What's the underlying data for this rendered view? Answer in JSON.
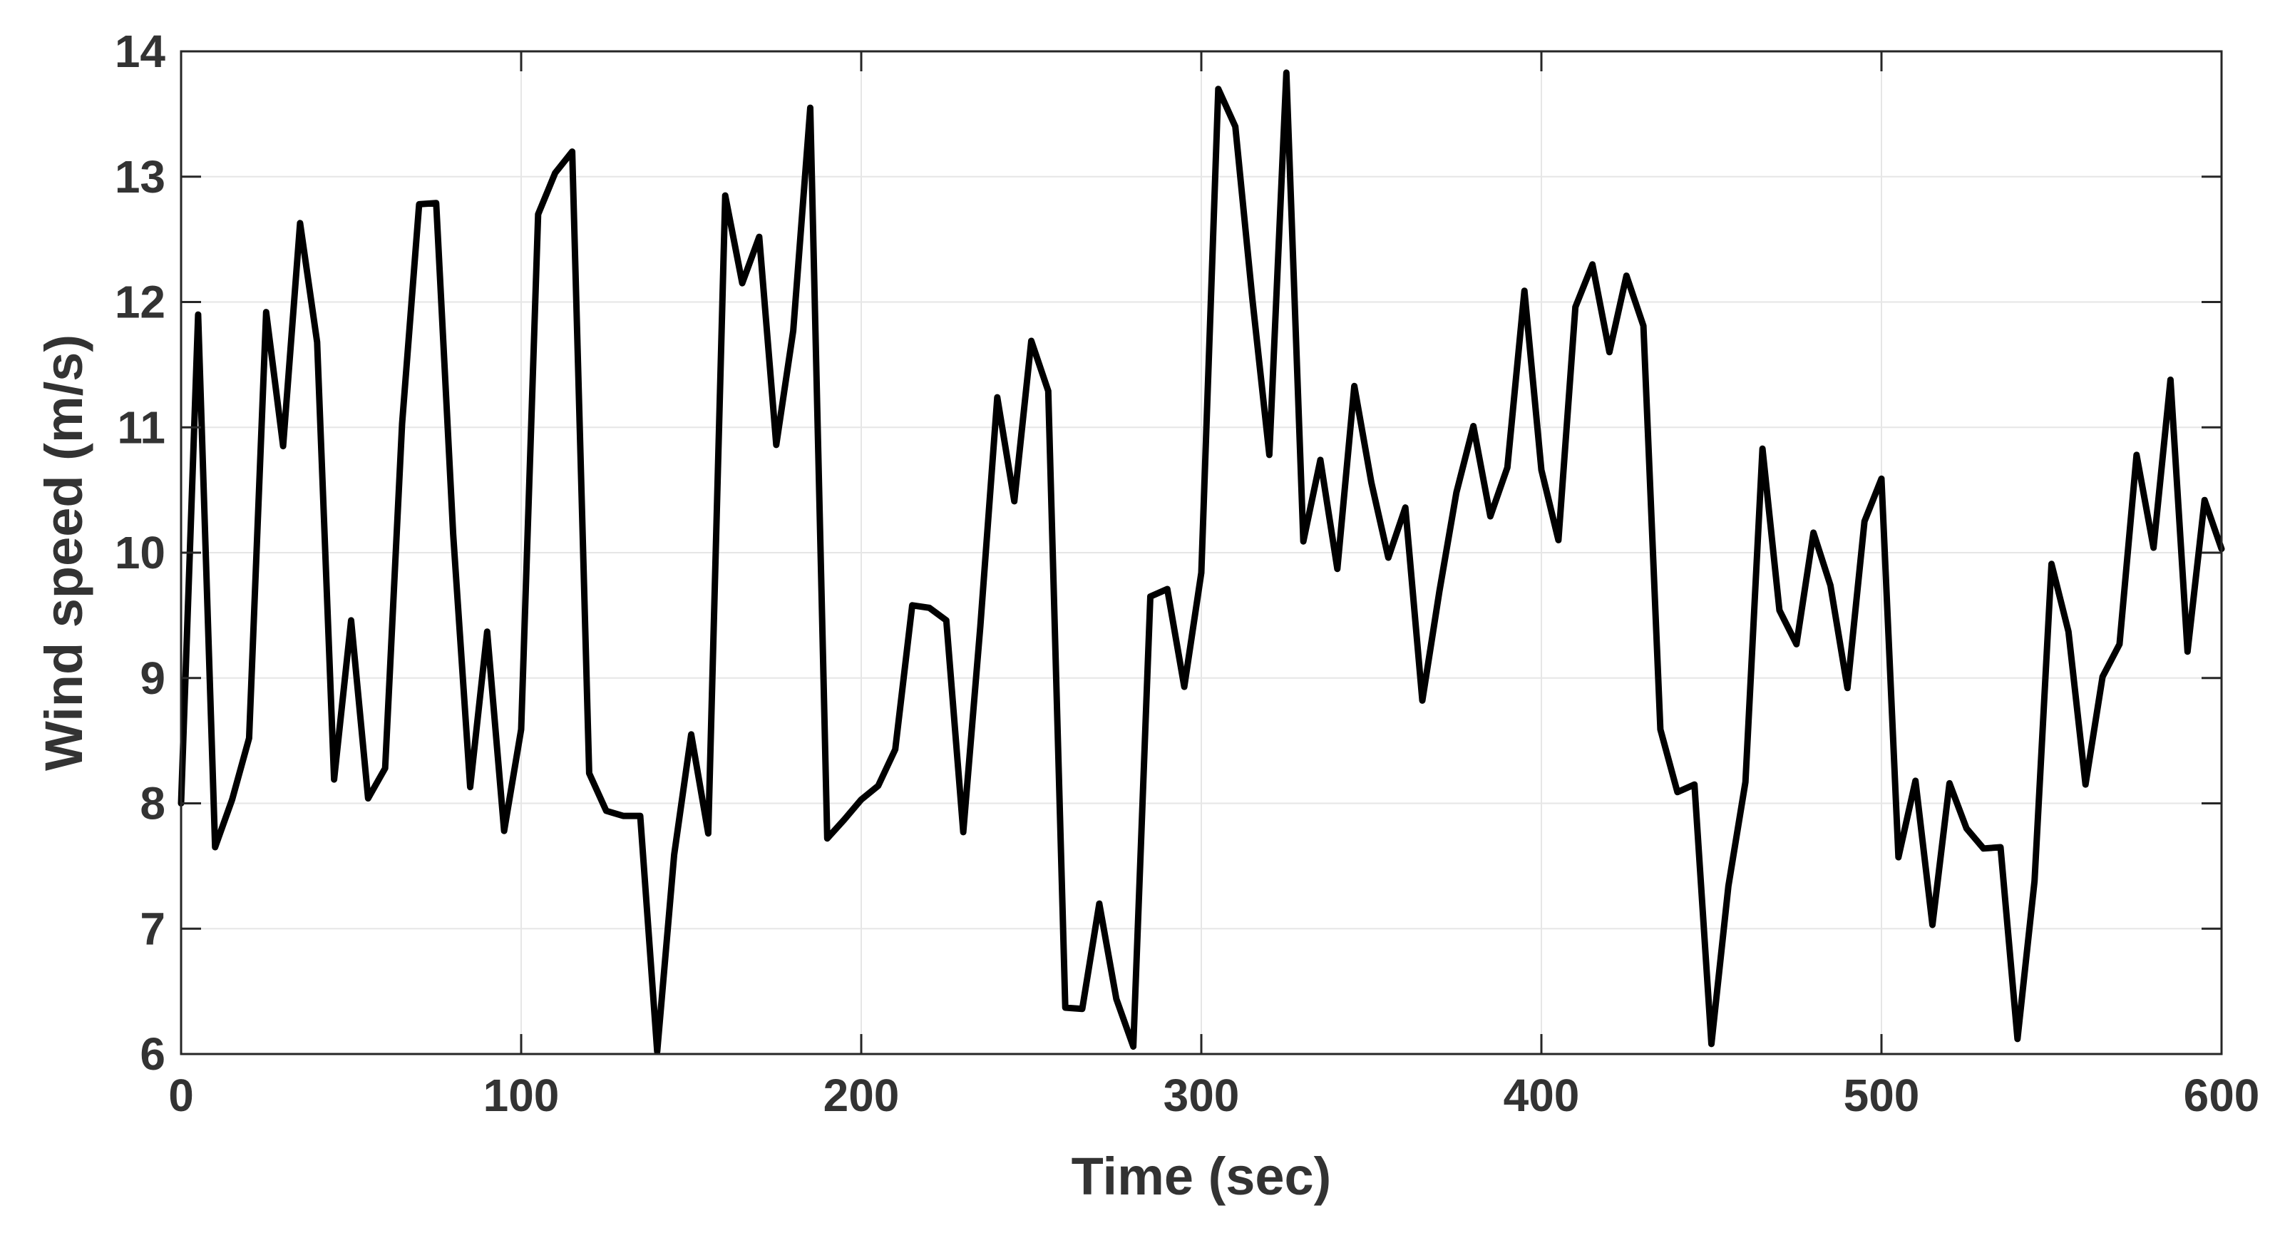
{
  "chart_data": {
    "type": "line",
    "xlabel": "Time (sec)",
    "ylabel": "Wind speed (m/s)",
    "xlim": [
      0,
      600
    ],
    "ylim": [
      6,
      14
    ],
    "xticks": [
      0,
      100,
      200,
      300,
      400,
      500,
      600
    ],
    "yticks": [
      6,
      7,
      8,
      9,
      10,
      11,
      12,
      13,
      14
    ],
    "grid": true,
    "colors": {
      "line": "#000000",
      "grid": "#e6e6e6",
      "axes": "#262626",
      "text": "#333333"
    },
    "series": [
      {
        "x": [
          0,
          5,
          10,
          15,
          20,
          25,
          30,
          35,
          40,
          45,
          50,
          55,
          60,
          65,
          70,
          75,
          80,
          85,
          90,
          95,
          100,
          105,
          110,
          115,
          120,
          125,
          130,
          135,
          140,
          145,
          150,
          155,
          160,
          165,
          170,
          175,
          180,
          185,
          190,
          195,
          200,
          205,
          210,
          215,
          220,
          225,
          230,
          235,
          240,
          245,
          250,
          255,
          260,
          265,
          270,
          275,
          280,
          285,
          290,
          295,
          300,
          305,
          310,
          315,
          320,
          325,
          330,
          335,
          340,
          345,
          350,
          355,
          360,
          365,
          370,
          375,
          380,
          385,
          390,
          395,
          400,
          405,
          410,
          415,
          420,
          425,
          430,
          435,
          440,
          445,
          450,
          455,
          460,
          465,
          470,
          475,
          480,
          485,
          490,
          495,
          500,
          505,
          510,
          515,
          520,
          525,
          530,
          535,
          540,
          545,
          550,
          555,
          560,
          565,
          570,
          575,
          580,
          585,
          590,
          595,
          600
        ],
        "y": [
          8.0,
          11.9,
          7.65,
          8.03,
          8.52,
          11.92,
          10.85,
          12.63,
          11.68,
          8.19,
          9.46,
          8.04,
          8.28,
          11.03,
          12.78,
          12.79,
          10.15,
          8.13,
          9.37,
          7.78,
          8.59,
          12.7,
          13.03,
          13.2,
          8.24,
          7.94,
          7.9,
          7.9,
          6.02,
          7.59,
          8.55,
          7.76,
          12.85,
          12.15,
          12.52,
          10.86,
          11.77,
          13.55,
          7.72,
          7.87,
          8.03,
          8.14,
          8.43,
          9.58,
          9.56,
          9.46,
          7.77,
          9.41,
          11.24,
          10.41,
          11.69,
          11.29,
          6.37,
          6.36,
          7.2,
          6.44,
          6.06,
          9.65,
          9.71,
          8.93,
          9.84,
          13.7,
          13.4,
          12.03,
          10.78,
          13.83,
          10.09,
          10.74,
          9.87,
          11.33,
          10.56,
          9.96,
          10.36,
          8.82,
          9.69,
          10.48,
          11.01,
          10.29,
          10.68,
          12.09,
          10.66,
          10.1,
          11.96,
          12.3,
          11.6,
          12.21,
          11.81,
          8.59,
          8.09,
          8.15,
          6.08,
          7.34,
          8.17,
          10.83,
          9.54,
          9.27,
          10.16,
          9.74,
          8.92,
          10.25,
          10.59,
          7.57,
          8.18,
          7.03,
          8.16,
          7.8,
          7.64,
          7.65,
          6.12,
          7.38,
          9.91,
          9.37,
          8.15,
          9.01,
          9.27,
          10.78,
          10.04,
          11.38,
          9.21,
          10.42,
          10.03
        ]
      }
    ]
  }
}
